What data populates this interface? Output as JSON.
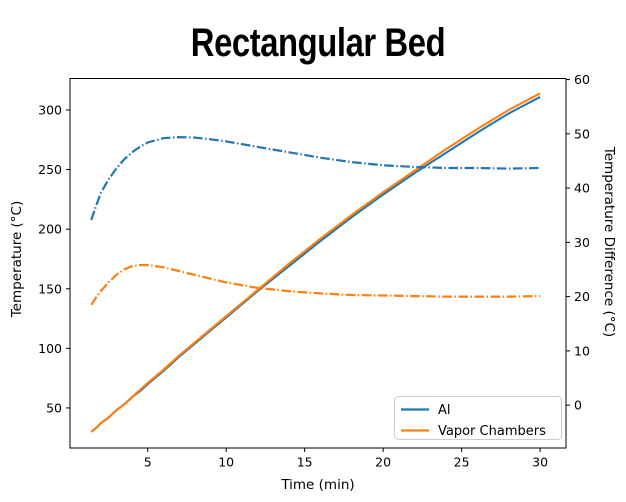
{
  "figure": {
    "background": "#ffffff",
    "text_color": "#000000"
  },
  "chart_data": {
    "type": "line",
    "title": "Rectangular Bed",
    "xlabel": "Time (min)",
    "ylabel_left": "Temperature (°C)",
    "ylabel_right": "Temperature Difference (°C)",
    "xlim": [
      0.05,
      31.65
    ],
    "ylim_left": [
      16.4,
      326.4
    ],
    "ylim_right": [
      -7.9,
      60.2
    ],
    "xticks": [
      5,
      10,
      15,
      20,
      25,
      30
    ],
    "yticks_left": [
      50,
      100,
      150,
      200,
      250,
      300
    ],
    "yticks_right": [
      0,
      10,
      20,
      30,
      40,
      50,
      60
    ],
    "grid": false,
    "legend": {
      "position": "lower right",
      "entries": [
        "Al",
        "Vapor Chambers"
      ]
    },
    "x": [
      1.4,
      1.7,
      2,
      2.5,
      3,
      3.5,
      4,
      4.5,
      5,
      6,
      7,
      8,
      9,
      10,
      12,
      14,
      16,
      18,
      20,
      22,
      24,
      26,
      28,
      30
    ],
    "series": [
      {
        "name": "Al",
        "axis": "left",
        "style": "solid",
        "color": "#1f77b4",
        "values": [
          30,
          33,
          37,
          42,
          48,
          53,
          59,
          64,
          70,
          81,
          93,
          104,
          115,
          126,
          148,
          169,
          190,
          210,
          229,
          247,
          264,
          281,
          297,
          311
        ]
      },
      {
        "name": "Vapor Chambers",
        "axis": "left",
        "style": "solid",
        "color": "#ff7f0e",
        "values": [
          30,
          33,
          37,
          42,
          48,
          53,
          59,
          65,
          71,
          82,
          94,
          105,
          116,
          127,
          149,
          171,
          192,
          212,
          231,
          249,
          267,
          284,
          300,
          314
        ]
      },
      {
        "name": "Al temperature difference",
        "axis": "right",
        "style": "dashdot",
        "color": "#1f77b4",
        "values": [
          34.1,
          36.6,
          39.0,
          41.6,
          43.6,
          45.3,
          46.6,
          47.6,
          48.4,
          49.2,
          49.4,
          49.3,
          49.0,
          48.6,
          47.6,
          46.6,
          45.6,
          44.8,
          44.2,
          43.9,
          43.7,
          43.7,
          43.6,
          43.7
        ]
      },
      {
        "name": "Vapor Chambers temperature difference",
        "axis": "right",
        "style": "dashdot",
        "color": "#ff7f0e",
        "values": [
          18.5,
          19.8,
          21.0,
          22.6,
          24.0,
          25.0,
          25.6,
          25.8,
          25.8,
          25.4,
          24.7,
          24.0,
          23.3,
          22.6,
          21.6,
          21.0,
          20.6,
          20.3,
          20.2,
          20.1,
          20.0,
          20.0,
          20.0,
          20.1
        ]
      }
    ]
  }
}
